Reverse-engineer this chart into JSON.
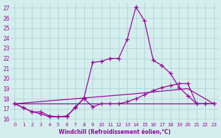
{
  "bg_color": "#d4eeee",
  "line_color": "#990099",
  "grid_color": "#aacccc",
  "xlabel": "Windchill (Refroidissement éolien,°C)",
  "ylabel_ticks": [
    16,
    17,
    18,
    19,
    20,
    21,
    22,
    23,
    24,
    25,
    26,
    27
  ],
  "xticks": [
    0,
    1,
    2,
    3,
    4,
    5,
    6,
    7,
    8,
    9,
    10,
    11,
    12,
    13,
    14,
    15,
    16,
    17,
    18,
    19,
    20,
    21,
    22,
    23
  ],
  "xlim": [
    -0.5,
    23.5
  ],
  "ylim": [
    15.7,
    27.5
  ],
  "lines": [
    {
      "x": [
        0,
        1,
        2,
        3,
        4,
        5,
        6,
        7,
        8,
        9,
        10,
        11,
        12,
        13,
        14,
        15,
        16,
        17,
        18,
        19,
        20,
        21,
        22,
        23
      ],
      "y": [
        17.5,
        17.1,
        16.7,
        16.7,
        16.3,
        16.2,
        16.3,
        17.1,
        18.1,
        21.6,
        21.7,
        22.0,
        22.0,
        23.9,
        27.1,
        25.7,
        21.8,
        21.3,
        20.5,
        19.1,
        18.3,
        17.5,
        17.5,
        17.5
      ],
      "marker": true
    },
    {
      "x": [
        0,
        1,
        2,
        3,
        4,
        5,
        6,
        7,
        8,
        9,
        10,
        11,
        12,
        13,
        14,
        15,
        16,
        17,
        18,
        19,
        20,
        21,
        22,
        23
      ],
      "y": [
        17.5,
        17.1,
        16.7,
        16.5,
        16.2,
        16.2,
        16.2,
        17.2,
        18.0,
        17.2,
        17.5,
        17.5,
        17.5,
        17.7,
        18.0,
        18.4,
        18.8,
        19.1,
        19.3,
        19.5,
        19.5,
        17.5,
        17.5,
        17.5
      ],
      "marker": true
    },
    {
      "x": [
        0,
        23
      ],
      "y": [
        17.5,
        17.5
      ],
      "marker": false
    },
    {
      "x": [
        0,
        14,
        20,
        23
      ],
      "y": [
        17.5,
        18.5,
        19.0,
        17.5
      ],
      "marker": false
    }
  ]
}
